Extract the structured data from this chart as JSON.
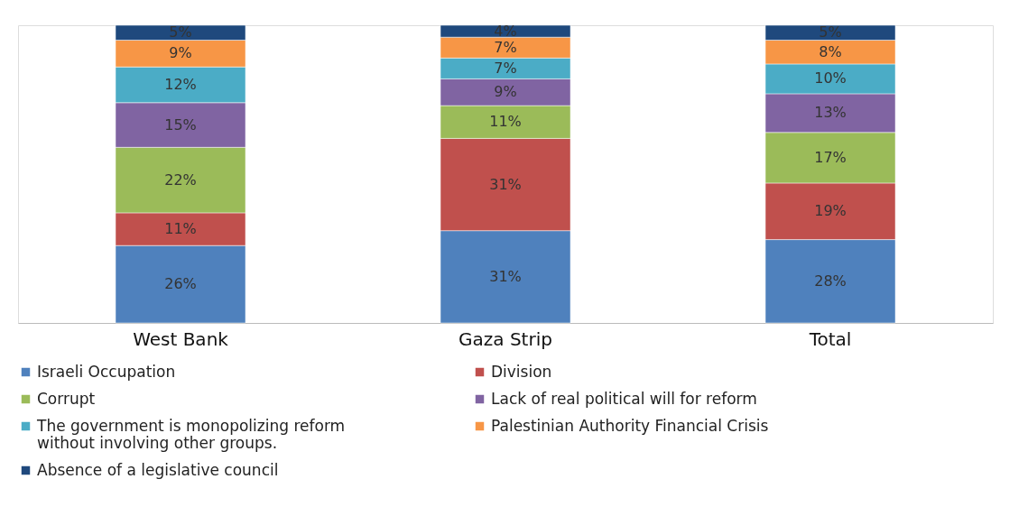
{
  "chart_data": {
    "type": "bar",
    "stacked": true,
    "categories": [
      "West Bank",
      "Gaza Strip",
      "Total"
    ],
    "ylim": [
      0,
      100
    ],
    "tick_labels": "x",
    "grid": false,
    "legend": "bottom",
    "series": [
      {
        "name": "Israeli Occupation",
        "color": "#4f81bd",
        "values": [
          26,
          31,
          28
        ],
        "value_labels": [
          "26%",
          "31%",
          "28%"
        ]
      },
      {
        "name": "Division",
        "color": "#c0504d",
        "values": [
          11,
          31,
          19
        ],
        "value_labels": [
          "11%",
          "31%",
          "19%"
        ]
      },
      {
        "name": "Corrupt",
        "color": "#9bbb59",
        "values": [
          22,
          11,
          17
        ],
        "value_labels": [
          "22%",
          "11%",
          "17%"
        ]
      },
      {
        "name": "Lack of real political will for reform",
        "color": "#8064a2",
        "values": [
          15,
          9,
          13
        ],
        "value_labels": [
          "15%",
          "9%",
          "13%"
        ]
      },
      {
        "name": "The government is monopolizing reform without involving other groups.",
        "color": "#4bacc6",
        "values": [
          12,
          7,
          10
        ],
        "value_labels": [
          "12%",
          "7%",
          "10%"
        ]
      },
      {
        "name": "Palestinian Authority Financial Crisis",
        "color": "#f79646",
        "values": [
          9,
          7,
          8
        ],
        "value_labels": [
          "9%",
          "7%",
          "8%"
        ]
      },
      {
        "name": "Absence of a legislative council",
        "color": "#1f497d",
        "values": [
          5,
          4,
          5
        ],
        "value_labels": [
          "5%",
          "4%",
          "5%"
        ]
      }
    ]
  }
}
